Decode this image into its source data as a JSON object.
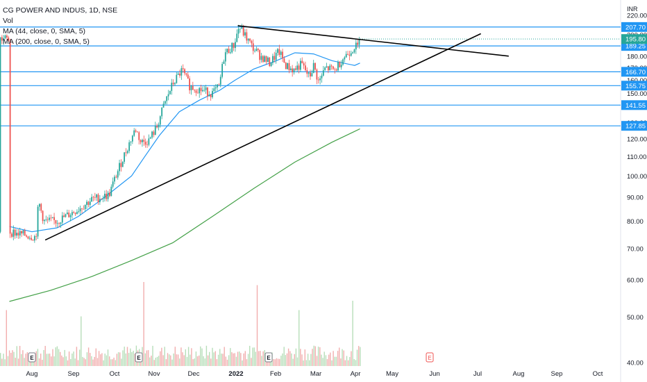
{
  "legend": {
    "symbol": "CG POWER AND INDUS, 1D, NSE",
    "volume": "Vol",
    "ma44": "MA (44, close, 0, SMA, 5)",
    "ma200": "MA (200, close, 0, SMA, 5)"
  },
  "currency": "INR",
  "colors": {
    "up": "#26a69a",
    "down": "#ef5350",
    "ma44": "#2196f3",
    "ma200": "#43a047",
    "horizontal_lines": "#2196f3",
    "trendlines": "#000000",
    "price_label_bg": "#2196f3",
    "last_price_label_bg": "#26a69a",
    "volume_up": "#a5d6a7",
    "volume_down": "#ef9a9a",
    "earnings_marker": "#787b86",
    "future_earnings_marker": "#ef5350"
  },
  "chart_data": {
    "type": "candlestick",
    "title": "CG POWER AND INDUS, 1D, NSE",
    "y_axis": {
      "unit": "INR",
      "ticks": [
        40,
        50,
        60,
        70,
        80,
        90,
        100,
        110,
        120,
        130,
        140,
        150,
        160,
        170,
        180,
        190,
        200,
        210,
        220
      ],
      "tick_labels": [
        "40.00",
        "50.00",
        "60.00",
        "70.00",
        "80.00",
        "90.00",
        "100.00",
        "110.00",
        "120.00",
        "130.00",
        "140.00",
        "150.00",
        "160.00",
        "170.00",
        "180.00",
        "190.00",
        "200.00",
        "210.00",
        "220.00"
      ],
      "scale": "log",
      "range": [
        40,
        222
      ]
    },
    "x_axis": {
      "tick_labels": [
        "Aug",
        "Sep",
        "Oct",
        "Nov",
        "Dec",
        "2022",
        "Feb",
        "Mar",
        "Apr",
        "May",
        "Jun",
        "Jul",
        "Aug",
        "Sep",
        "Oct"
      ],
      "bold_labels": [
        "2022"
      ]
    },
    "horizontal_levels": [
      {
        "value": 207.7,
        "label": "207.70"
      },
      {
        "value": 189.25,
        "label": "189.25"
      },
      {
        "value": 166.7,
        "label": "166.70"
      },
      {
        "value": 155.75,
        "label": "155.75"
      },
      {
        "value": 141.55,
        "label": "141.55"
      },
      {
        "value": 127.85,
        "label": "127.85"
      }
    ],
    "last_price": {
      "value": 195.8,
      "label": "195.80"
    },
    "trendlines": [
      {
        "name": "descending-resistance",
        "from": {
          "date": "2022-01-03",
          "price": 209
        },
        "to": {
          "date": "2022-07-26",
          "price": 180
        }
      },
      {
        "name": "ascending-support",
        "from": {
          "date": "2021-08-11",
          "price": 73
        },
        "to": {
          "date": "2022-07-05",
          "price": 201
        }
      }
    ],
    "ma44_points": [
      [
        "2021-07-15",
        78
      ],
      [
        "2021-08-01",
        76
      ],
      [
        "2021-08-20",
        77.5
      ],
      [
        "2021-09-05",
        82
      ],
      [
        "2021-09-20",
        88
      ],
      [
        "2021-10-01",
        93
      ],
      [
        "2021-10-15",
        100
      ],
      [
        "2021-10-25",
        110
      ],
      [
        "2021-11-05",
        122
      ],
      [
        "2021-11-20",
        137
      ],
      [
        "2021-12-05",
        145
      ],
      [
        "2021-12-20",
        152
      ],
      [
        "2022-01-01",
        160
      ],
      [
        "2022-01-15",
        169
      ],
      [
        "2022-02-01",
        176
      ],
      [
        "2022-02-15",
        183
      ],
      [
        "2022-03-01",
        182
      ],
      [
        "2022-03-15",
        176
      ],
      [
        "2022-04-01",
        172
      ],
      [
        "2022-04-05",
        174
      ]
    ],
    "ma200_points": [
      [
        "2021-07-15",
        54
      ],
      [
        "2021-08-15",
        57
      ],
      [
        "2021-09-15",
        61
      ],
      [
        "2021-10-15",
        66
      ],
      [
        "2021-11-15",
        72
      ],
      [
        "2021-12-15",
        82
      ],
      [
        "2022-01-15",
        94
      ],
      [
        "2022-02-15",
        107
      ],
      [
        "2022-03-15",
        118
      ],
      [
        "2022-04-05",
        126
      ]
    ],
    "candles_segments": [
      [
        "2021-07-15",
        76
      ],
      [
        "2021-07-25",
        75
      ],
      [
        "2021-08-04",
        74
      ],
      [
        "2021-08-06",
        88
      ],
      [
        "2021-08-10",
        80
      ],
      [
        "2021-08-20",
        80
      ],
      [
        "2021-09-05",
        85
      ],
      [
        "2021-09-15",
        89
      ],
      [
        "2021-09-28",
        91
      ],
      [
        "2021-10-05",
        103
      ],
      [
        "2021-10-12",
        115
      ],
      [
        "2021-10-18",
        126
      ],
      [
        "2021-10-22",
        118
      ],
      [
        "2021-10-28",
        119
      ],
      [
        "2021-11-03",
        127
      ],
      [
        "2021-11-09",
        143
      ],
      [
        "2021-11-15",
        157
      ],
      [
        "2021-11-22",
        168
      ],
      [
        "2021-11-28",
        155
      ],
      [
        "2021-12-08",
        152
      ],
      [
        "2021-12-15",
        150
      ],
      [
        "2021-12-20",
        155
      ],
      [
        "2021-12-24",
        182
      ],
      [
        "2021-12-31",
        190
      ],
      [
        "2022-01-04",
        208
      ],
      [
        "2022-01-08",
        200
      ],
      [
        "2022-01-14",
        188
      ],
      [
        "2022-01-20",
        180
      ],
      [
        "2022-01-27",
        174
      ],
      [
        "2022-02-03",
        184
      ],
      [
        "2022-02-08",
        172
      ],
      [
        "2022-02-14",
        168
      ],
      [
        "2022-02-20",
        173
      ],
      [
        "2022-02-26",
        162
      ],
      [
        "2022-03-01",
        172
      ],
      [
        "2022-03-05",
        158
      ],
      [
        "2022-03-10",
        170
      ],
      [
        "2022-03-17",
        168
      ],
      [
        "2022-03-23",
        178
      ],
      [
        "2022-03-29",
        185
      ],
      [
        "2022-04-01",
        189
      ],
      [
        "2022-04-04",
        188
      ],
      [
        "2022-04-05",
        195.8
      ]
    ]
  }
}
